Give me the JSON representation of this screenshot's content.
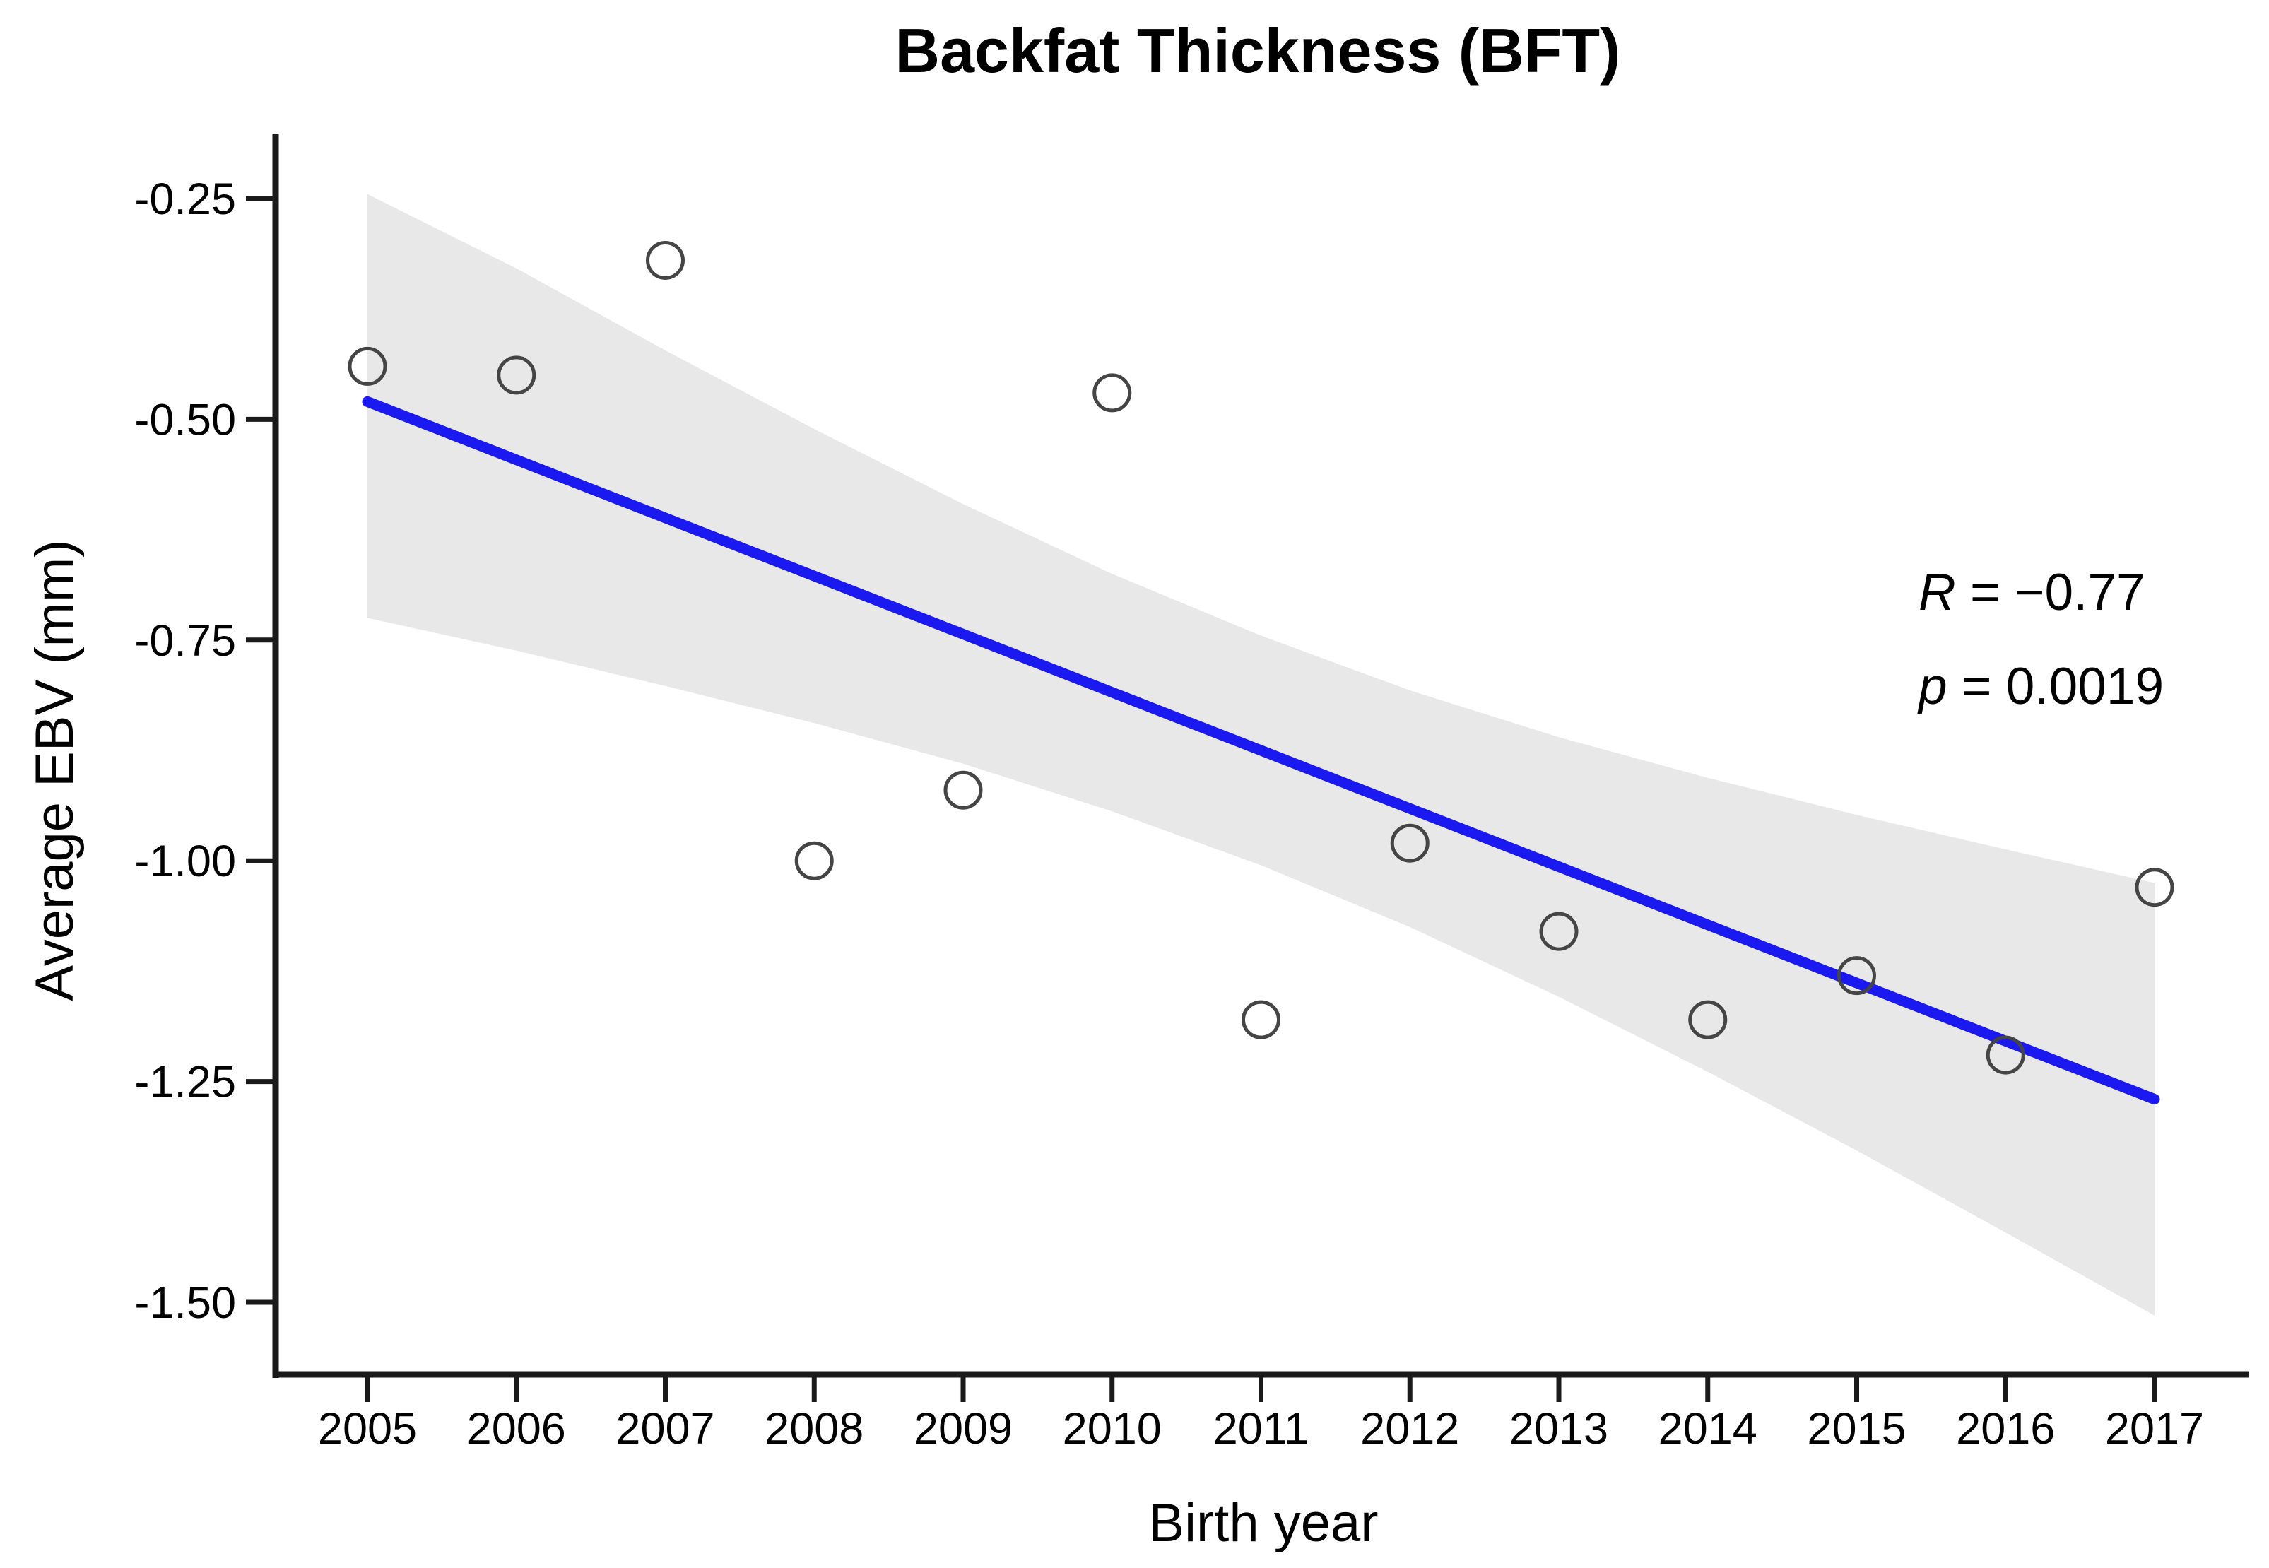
{
  "figure": {
    "title": "Backfat Thickness (BFT)",
    "x_axis_label": "Birth year",
    "y_axis_label": "Average EBV (mm)",
    "annotation": {
      "r_var": "R",
      "r_rest": " = −0.77",
      "p_var": "p",
      "p_rest": " = 0.0019"
    }
  },
  "chart_data": {
    "type": "scatter",
    "title": "Backfat Thickness (BFT)",
    "xlabel": "Birth year",
    "ylabel": "Average EBV (mm)",
    "x": [
      2005,
      2006,
      2007,
      2008,
      2009,
      2010,
      2011,
      2012,
      2013,
      2014,
      2015,
      2016,
      2017
    ],
    "y": [
      -0.44,
      -0.45,
      -0.32,
      -1.0,
      -0.92,
      -0.47,
      -1.18,
      -0.98,
      -1.08,
      -1.18,
      -1.13,
      -1.22,
      -1.03
    ],
    "point_style": {
      "marker": "open-circle",
      "stroke": "#454545"
    },
    "trendline": {
      "x": [
        2005,
        2017
      ],
      "y": [
        -0.48,
        -1.27
      ],
      "color": "#1a1af0"
    },
    "ci_band": {
      "x": [
        2005,
        2006,
        2007,
        2008,
        2009,
        2010,
        2011,
        2012,
        2013,
        2014,
        2015,
        2016,
        2017
      ],
      "top": [
        -0.245,
        -0.329,
        -0.422,
        -0.511,
        -0.596,
        -0.675,
        -0.745,
        -0.807,
        -0.86,
        -0.906,
        -0.948,
        -0.987,
        -1.025
      ],
      "bottom": [
        -0.725,
        -0.762,
        -0.802,
        -0.844,
        -0.89,
        -0.944,
        -1.005,
        -1.075,
        -1.154,
        -1.239,
        -1.328,
        -1.421,
        -1.515
      ],
      "color": "#e8e8e8"
    },
    "x_tick_labels": [
      "2005",
      "2006",
      "2007",
      "2008",
      "2009",
      "2010",
      "2011",
      "2012",
      "2013",
      "2014",
      "2015",
      "2016",
      "2017"
    ],
    "x_tick_values": [
      2005,
      2006,
      2007,
      2008,
      2009,
      2010,
      2011,
      2012,
      2013,
      2014,
      2015,
      2016,
      2017
    ],
    "y_tick_labels": [
      "-0.25",
      "-0.50",
      "-0.75",
      "-1.00",
      "-1.25",
      "-1.50"
    ],
    "y_tick_values": [
      -0.25,
      -0.5,
      -0.75,
      -1.0,
      -1.25,
      -1.5
    ],
    "xlim": [
      2004.4,
      2017.65
    ],
    "ylim": [
      -1.58,
      -0.18
    ],
    "grid": false,
    "legend": "none",
    "axis_color": "#1a1a1a",
    "annotations": [
      "R = −0.77",
      "p = 0.0019"
    ]
  }
}
